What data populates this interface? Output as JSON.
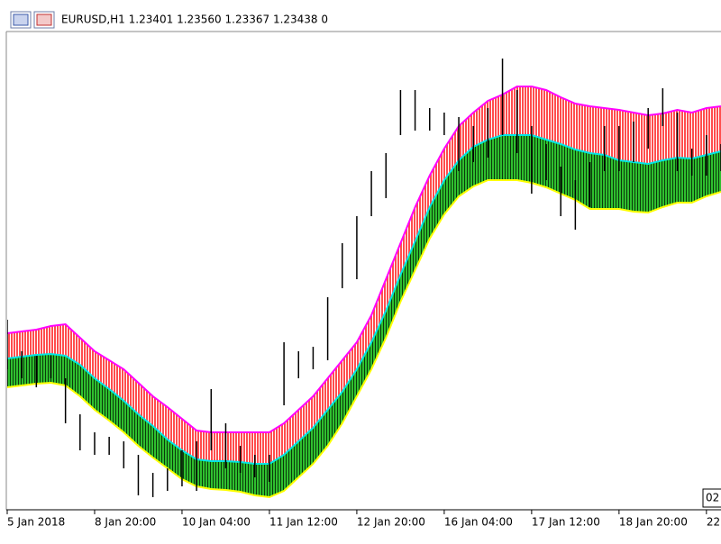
{
  "chart_data": {
    "type": "bars",
    "title": "EURUSD,H1  1.23401 1.23560 1.23367 1.23438  0",
    "corner_label": "02",
    "categories": [
      "5 Jan 2018",
      null,
      null,
      null,
      null,
      null,
      "8 Jan 20:00",
      null,
      null,
      null,
      null,
      null,
      "10 Jan 04:00",
      null,
      null,
      null,
      null,
      null,
      "11 Jan 12:00",
      null,
      null,
      null,
      null,
      null,
      "12 Jan 20:00",
      null,
      null,
      null,
      null,
      null,
      "16 Jan 04:00",
      null,
      null,
      null,
      null,
      null,
      "17 Jan 12:00",
      null,
      null,
      null,
      null,
      null,
      "18 Jan 20:00",
      null,
      null,
      null,
      null,
      null,
      "22",
      null
    ],
    "high": [
      1.20556,
      1.20276,
      1.20236,
      1.20236,
      1.20036,
      1.19716,
      1.19556,
      1.19516,
      1.19476,
      1.19356,
      1.19196,
      1.19236,
      1.19396,
      1.19476,
      1.1994,
      1.19636,
      1.19436,
      1.19356,
      1.19356,
      1.20356,
      1.20276,
      1.20316,
      1.20756,
      1.21236,
      1.21476,
      1.21876,
      1.22036,
      1.22596,
      1.22596,
      1.22436,
      1.22396,
      1.22356,
      1.22276,
      1.22436,
      1.22876,
      1.22596,
      1.22276,
      1.22116,
      1.21916,
      1.21796,
      1.21956,
      1.22276,
      1.22276,
      1.22316,
      1.22436,
      1.22612,
      1.22396,
      1.22076,
      1.22196,
      1.22116
    ],
    "low": [
      1.20116,
      1.20036,
      1.19956,
      1.20036,
      1.19636,
      1.19396,
      1.19356,
      1.19356,
      1.19236,
      1.18996,
      1.1898,
      1.19036,
      1.19076,
      1.19036,
      1.19396,
      1.19236,
      1.19196,
      1.19156,
      1.19116,
      1.19796,
      1.20036,
      1.20116,
      1.20196,
      1.20836,
      1.20916,
      1.21476,
      1.21636,
      1.22196,
      1.22236,
      1.22236,
      1.22196,
      1.21876,
      1.21956,
      1.21996,
      1.22196,
      1.22036,
      1.21676,
      1.21796,
      1.21476,
      1.21356,
      1.21556,
      1.21876,
      1.21876,
      1.21956,
      1.22076,
      1.22276,
      1.21876,
      1.21836,
      1.21836,
      1.21876
    ],
    "bar_color": "#000000",
    "series": [
      {
        "color": "#ff00ff",
        "fill": "#ff4d4d",
        "values": [
          1.20436,
          1.20452,
          1.20468,
          1.205,
          1.20516,
          1.20396,
          1.20276,
          1.20196,
          1.20116,
          1.19996,
          1.19876,
          1.1978,
          1.19676,
          1.19572,
          1.19556,
          1.19556,
          1.19556,
          1.19556,
          1.19556,
          1.19636,
          1.19756,
          1.19876,
          1.20036,
          1.20196,
          1.20356,
          1.20596,
          1.20916,
          1.21236,
          1.21556,
          1.21836,
          1.22076,
          1.22276,
          1.22396,
          1.225,
          1.22556,
          1.22628,
          1.22628,
          1.22596,
          1.22532,
          1.22476,
          1.22452,
          1.22436,
          1.2242,
          1.22396,
          1.22372,
          1.22388,
          1.2242,
          1.22396,
          1.22436,
          1.22452
        ]
      },
      {
        "color": "#00e5e5",
        "fill": "#2fbf2f",
        "values": [
          1.20212,
          1.20228,
          1.20244,
          1.20252,
          1.20236,
          1.20156,
          1.20036,
          1.1994,
          1.19836,
          1.19716,
          1.19612,
          1.19492,
          1.19396,
          1.19316,
          1.193,
          1.193,
          1.19292,
          1.19276,
          1.19276,
          1.19356,
          1.19476,
          1.19596,
          1.19756,
          1.19916,
          1.20116,
          1.20356,
          1.20636,
          1.20956,
          1.21252,
          1.21556,
          1.21796,
          1.21972,
          1.22092,
          1.22156,
          1.22196,
          1.22196,
          1.22196,
          1.22156,
          1.22116,
          1.22068,
          1.22036,
          1.2202,
          1.21972,
          1.21956,
          1.2194,
          1.21972,
          1.21996,
          1.21988,
          1.2202,
          1.22052
        ]
      },
      {
        "color": "#ffff00",
        "values": [
          1.19956,
          1.19972,
          1.19988,
          1.19996,
          1.19972,
          1.19876,
          1.19756,
          1.1966,
          1.19556,
          1.19436,
          1.19332,
          1.19236,
          1.1914,
          1.19076,
          1.19052,
          1.19044,
          1.19028,
          1.18996,
          1.1898,
          1.19036,
          1.19156,
          1.19276,
          1.19436,
          1.19636,
          1.19876,
          1.20116,
          1.20396,
          1.20716,
          1.20996,
          1.21276,
          1.21492,
          1.21652,
          1.2174,
          1.21796,
          1.21796,
          1.21796,
          1.21772,
          1.21732,
          1.21676,
          1.2162,
          1.2154,
          1.2154,
          1.2154,
          1.21516,
          1.21508,
          1.21556,
          1.21596,
          1.21596,
          1.21652,
          1.21692
        ]
      }
    ],
    "ylim": [
      1.18876,
      1.233
    ]
  }
}
